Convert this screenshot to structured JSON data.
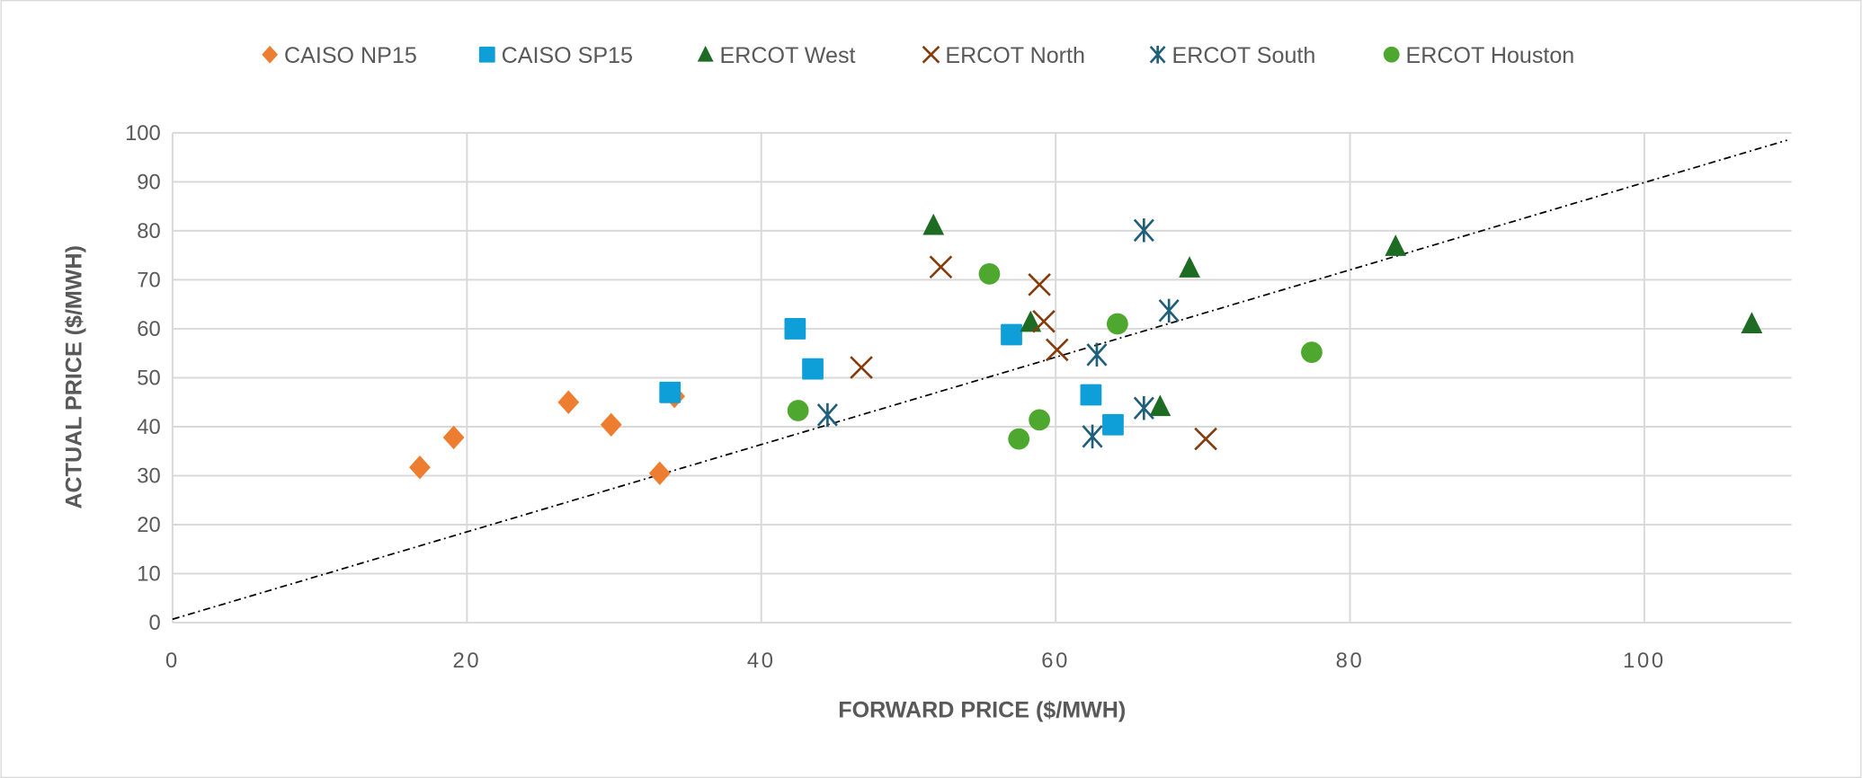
{
  "chart_data": {
    "type": "scatter",
    "title": "",
    "xlabel": "FORWARD PRICE ($/MWH)",
    "ylabel": "ACTUAL PRICE ($/MWH)",
    "xlim": [
      0,
      110
    ],
    "ylim": [
      0,
      100
    ],
    "xticks": [
      0,
      20,
      40,
      60,
      80,
      100
    ],
    "yticks": [
      0,
      10,
      20,
      30,
      40,
      50,
      60,
      70,
      80,
      90,
      100
    ],
    "grid": true,
    "legend_position": "top",
    "series": [
      {
        "name": "CAISO NP15",
        "marker": "diamond",
        "color": "#ED7D31",
        "points": [
          [
            16.8,
            31.7
          ],
          [
            19.1,
            37.8
          ],
          [
            26.9,
            45.0
          ],
          [
            29.8,
            40.4
          ],
          [
            33.1,
            30.5
          ],
          [
            34.1,
            46.2
          ]
        ]
      },
      {
        "name": "CAISO SP15",
        "marker": "square",
        "color": "#0E9FD8",
        "points": [
          [
            33.8,
            47.0
          ],
          [
            42.3,
            60.0
          ],
          [
            43.5,
            51.8
          ],
          [
            57.0,
            58.8
          ],
          [
            62.4,
            46.5
          ],
          [
            63.9,
            40.4
          ]
        ]
      },
      {
        "name": "ERCOT West",
        "marker": "triangle",
        "color": "#1E6B23",
        "points": [
          [
            51.7,
            81.1
          ],
          [
            58.3,
            61.3
          ],
          [
            69.1,
            72.4
          ],
          [
            67.1,
            44.1
          ],
          [
            83.1,
            76.8
          ],
          [
            107.3,
            61.0
          ]
        ]
      },
      {
        "name": "ERCOT North",
        "marker": "x",
        "color": "#843C0C",
        "points": [
          [
            52.2,
            72.6
          ],
          [
            58.9,
            69.0
          ],
          [
            59.2,
            61.5
          ],
          [
            60.1,
            55.7
          ],
          [
            46.8,
            52.1
          ],
          [
            70.2,
            37.5
          ]
        ]
      },
      {
        "name": "ERCOT South",
        "marker": "star",
        "color": "#1F5F7A",
        "points": [
          [
            66.0,
            80.1
          ],
          [
            67.7,
            63.7
          ],
          [
            62.8,
            54.7
          ],
          [
            44.5,
            42.4
          ],
          [
            62.5,
            38.0
          ],
          [
            66.0,
            43.8
          ]
        ]
      },
      {
        "name": "ERCOT Houston",
        "marker": "circle",
        "color": "#4EA72E",
        "points": [
          [
            55.5,
            71.2
          ],
          [
            64.2,
            61.0
          ],
          [
            77.4,
            55.2
          ],
          [
            42.5,
            43.3
          ],
          [
            58.9,
            41.4
          ],
          [
            57.5,
            37.5
          ]
        ]
      }
    ],
    "trendline": {
      "style": "dash-dot",
      "color": "#000000",
      "from": [
        0,
        0.7
      ],
      "to": [
        109.7,
        98.5
      ]
    }
  }
}
